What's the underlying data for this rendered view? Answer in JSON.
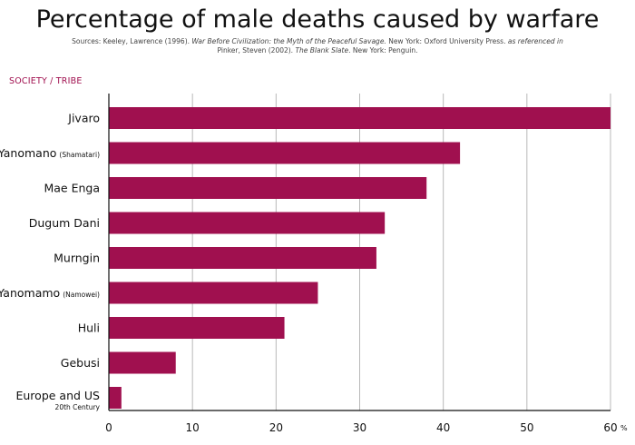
{
  "chart_data": {
    "type": "bar",
    "orientation": "horizontal",
    "title": "Percentage of male deaths caused by warfare",
    "sources": {
      "part1": "Sources: Keeley, Lawrence (1996). ",
      "book1": "War Before Civilization: the Myth of the Peaceful Savage.",
      "part2": " New York: Oxford University Press.  ",
      "ref": "as referenced in",
      "part3": "Pinker, Steven (2002). ",
      "book2": "The Blank Slate",
      "part4": ". New York: Penguin."
    },
    "ylabel": "SOCIETY / TRIBE",
    "xunit": "%",
    "categories": [
      {
        "name": "Jivaro",
        "sub": ""
      },
      {
        "name": "Yanomano",
        "sub": "(Shamatari)"
      },
      {
        "name": "Mae Enga",
        "sub": ""
      },
      {
        "name": "Dugum Dani",
        "sub": ""
      },
      {
        "name": "Murngin",
        "sub": ""
      },
      {
        "name": "Yanomamo",
        "sub": "(Namowei)"
      },
      {
        "name": "Huli",
        "sub": ""
      },
      {
        "name": "Gebusi",
        "sub": ""
      },
      {
        "name": "Europe and US",
        "sub": "20th Century",
        "sub_below": true
      }
    ],
    "values": [
      60,
      42,
      38,
      33,
      32,
      25,
      21,
      8,
      1.5
    ],
    "xlim": [
      0,
      60
    ],
    "xticks": [
      0,
      10,
      20,
      30,
      40,
      50,
      60
    ],
    "grid": true,
    "bar_color": "#a0104f",
    "grid_color": "#b8b8b8"
  }
}
